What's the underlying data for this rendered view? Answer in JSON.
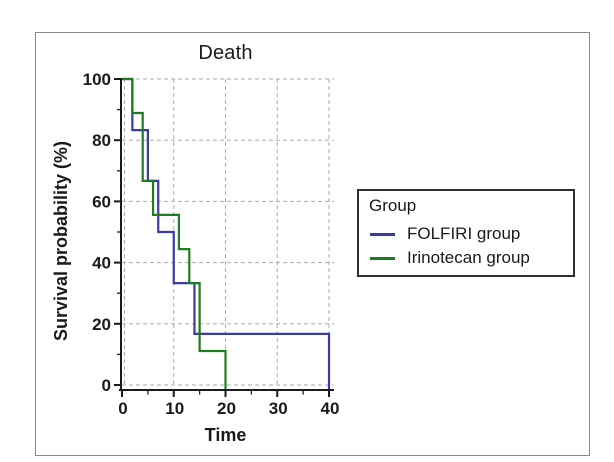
{
  "chart_data": {
    "type": "line",
    "subtype": "kaplan-meier-step-survival",
    "title": "Death",
    "xlabel": "Time",
    "ylabel": "Survival probability (%)",
    "xlim": [
      0,
      40
    ],
    "ylim": [
      0,
      100
    ],
    "xticks": [
      0,
      10,
      20,
      30,
      40
    ],
    "yticks": [
      0,
      20,
      40,
      60,
      80,
      100
    ],
    "x_minor_ticks": [
      5,
      15,
      25,
      35
    ],
    "y_minor_ticks": [
      10,
      30,
      50,
      70,
      90
    ],
    "grid": "dashed",
    "legend_title": "Group",
    "legend_position": "right",
    "series": [
      {
        "name": "FOLFIRI group",
        "color": "#3a3aa8",
        "step": "post",
        "points": [
          [
            0,
            100
          ],
          [
            2,
            83.3
          ],
          [
            5,
            66.7
          ],
          [
            7,
            50
          ],
          [
            10,
            33.3
          ],
          [
            14,
            16.7
          ],
          [
            40,
            0
          ]
        ]
      },
      {
        "name": "Irinotecan group",
        "color": "#1e7d1e",
        "step": "post",
        "points": [
          [
            0,
            100
          ],
          [
            2,
            88.9
          ],
          [
            4,
            66.7
          ],
          [
            6,
            55.6
          ],
          [
            11,
            44.4
          ],
          [
            13,
            33.3
          ],
          [
            15,
            11.1
          ],
          [
            20,
            0
          ]
        ]
      }
    ],
    "colors": {
      "grid": "#ababab",
      "axis": "#1a1a1a",
      "text": "#1a1a1a",
      "figure_border": "#8a8a8a",
      "legend_border": "#2e2e2e",
      "background": "#ffffff"
    }
  }
}
